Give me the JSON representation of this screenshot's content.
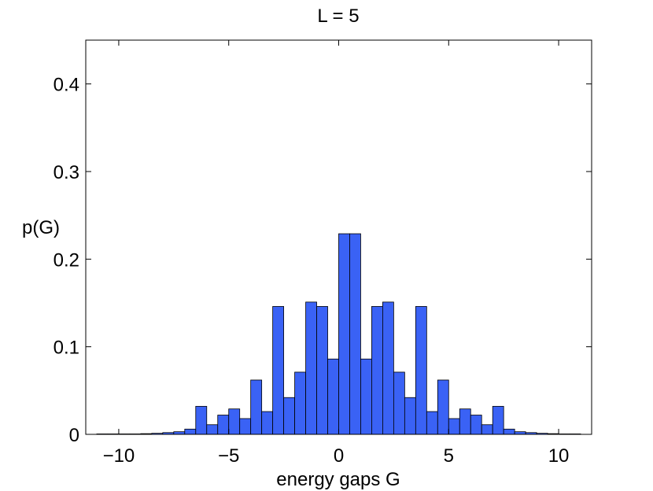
{
  "chart_data": {
    "type": "bar",
    "title": "L = 5",
    "xlabel": "energy gaps G",
    "ylabel": "p(G)",
    "xlim": [
      -11.5,
      11.5
    ],
    "ylim": [
      0,
      0.45
    ],
    "xticks": [
      -10,
      -5,
      0,
      5,
      10
    ],
    "xtick_labels": [
      "−10",
      "−5",
      "0",
      "5",
      "10"
    ],
    "yticks": [
      0,
      0.1,
      0.2,
      0.3,
      0.4
    ],
    "ytick_labels": [
      "0",
      "0.1",
      "0.2",
      "0.3",
      "0.4"
    ],
    "grid": false,
    "bar_color": "#3a62f5",
    "bin_width": 0.5,
    "bins": [
      {
        "x": -10.5,
        "value": 0.0005
      },
      {
        "x": -10.0,
        "value": 0.0005
      },
      {
        "x": -9.5,
        "value": 0.0005
      },
      {
        "x": -9.0,
        "value": 0.0005
      },
      {
        "x": -8.5,
        "value": 0.0008
      },
      {
        "x": -8.0,
        "value": 0.0012
      },
      {
        "x": -7.5,
        "value": 0.002
      },
      {
        "x": -7.0,
        "value": 0.003
      },
      {
        "x": -6.5,
        "value": 0.006
      },
      {
        "x": -6.0,
        "value": 0.032
      },
      {
        "x": -5.5,
        "value": 0.011
      },
      {
        "x": -5.0,
        "value": 0.022
      },
      {
        "x": -4.5,
        "value": 0.029
      },
      {
        "x": -4.0,
        "value": 0.018
      },
      {
        "x": -3.5,
        "value": 0.062
      },
      {
        "x": -3.0,
        "value": 0.026
      },
      {
        "x": -2.5,
        "value": 0.146
      },
      {
        "x": -2.0,
        "value": 0.042
      },
      {
        "x": -1.5,
        "value": 0.071
      },
      {
        "x": -1.0,
        "value": 0.151
      },
      {
        "x": -0.5,
        "value": 0.146
      },
      {
        "x": 0.0,
        "value": 0.086
      },
      {
        "x": 0.5,
        "value": 0.229
      },
      {
        "x": 1.0,
        "value": 0.229
      },
      {
        "x": 1.5,
        "value": 0.086
      },
      {
        "x": 2.0,
        "value": 0.146
      },
      {
        "x": 2.5,
        "value": 0.151
      },
      {
        "x": 3.0,
        "value": 0.071
      },
      {
        "x": 3.5,
        "value": 0.042
      },
      {
        "x": 4.0,
        "value": 0.146
      },
      {
        "x": 4.5,
        "value": 0.026
      },
      {
        "x": 5.0,
        "value": 0.062
      },
      {
        "x": 5.5,
        "value": 0.018
      },
      {
        "x": 6.0,
        "value": 0.029
      },
      {
        "x": 6.5,
        "value": 0.022
      },
      {
        "x": 7.0,
        "value": 0.011
      },
      {
        "x": 7.5,
        "value": 0.032
      },
      {
        "x": 8.0,
        "value": 0.006
      },
      {
        "x": 8.5,
        "value": 0.003
      },
      {
        "x": 9.0,
        "value": 0.002
      },
      {
        "x": 9.5,
        "value": 0.0012
      },
      {
        "x": 10.0,
        "value": 0.0008
      },
      {
        "x": 10.5,
        "value": 0.0005
      },
      {
        "x": 11.0,
        "value": 0.0005
      }
    ]
  }
}
